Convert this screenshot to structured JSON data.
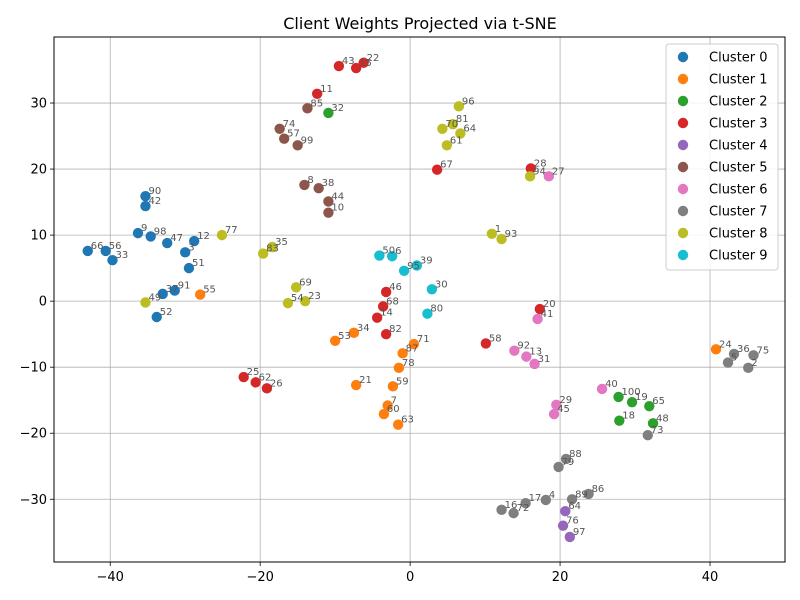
{
  "chart_data": {
    "type": "scatter",
    "title": "Client Weights Projected via t-SNE",
    "xlabel": "",
    "ylabel": "",
    "xlim": [
      -47.5,
      50
    ],
    "ylim": [
      -39.5,
      40
    ],
    "xticks": [
      -40,
      -20,
      0,
      20,
      40
    ],
    "yticks": [
      -30,
      -20,
      -10,
      0,
      10,
      20,
      30
    ],
    "grid": true,
    "legend_position": "top-right",
    "series": [
      {
        "name": "Cluster 0",
        "color": "#1f77b4",
        "points": [
          {
            "label": "66",
            "x": -43.0,
            "y": 7.6
          },
          {
            "label": "56",
            "x": -40.6,
            "y": 7.6
          },
          {
            "label": "33",
            "x": -39.7,
            "y": 6.2
          },
          {
            "label": "90",
            "x": -35.3,
            "y": 15.9
          },
          {
            "label": "42",
            "x": -35.3,
            "y": 14.4
          },
          {
            "label": "9",
            "x": -36.3,
            "y": 10.3
          },
          {
            "label": "98",
            "x": -34.6,
            "y": 9.8
          },
          {
            "label": "47",
            "x": -32.4,
            "y": 8.8
          },
          {
            "label": "12",
            "x": -28.8,
            "y": 9.1
          },
          {
            "label": "3",
            "x": -30.0,
            "y": 7.4
          },
          {
            "label": "51",
            "x": -29.5,
            "y": 5.0
          },
          {
            "label": "37",
            "x": -33.0,
            "y": 1.1
          },
          {
            "label": "91",
            "x": -31.4,
            "y": 1.6
          },
          {
            "label": "52",
            "x": -33.8,
            "y": -2.4
          }
        ]
      },
      {
        "name": "Cluster 1",
        "color": "#ff7f0e",
        "points": [
          {
            "label": "55",
            "x": -28.0,
            "y": 1.0
          },
          {
            "label": "53",
            "x": -10.0,
            "y": -6.0
          },
          {
            "label": "34",
            "x": -7.5,
            "y": -4.8
          },
          {
            "label": "21",
            "x": -7.2,
            "y": -12.7
          },
          {
            "label": "87",
            "x": -1.0,
            "y": -7.9
          },
          {
            "label": "71",
            "x": 0.5,
            "y": -6.5
          },
          {
            "label": "78",
            "x": -1.5,
            "y": -10.1
          },
          {
            "label": "59",
            "x": -2.3,
            "y": -12.9
          },
          {
            "label": "7",
            "x": -3.0,
            "y": -15.8
          },
          {
            "label": "60",
            "x": -3.5,
            "y": -17.1
          },
          {
            "label": "63",
            "x": -1.6,
            "y": -18.7
          },
          {
            "label": "24",
            "x": 40.8,
            "y": -7.3
          }
        ]
      },
      {
        "name": "Cluster 2",
        "color": "#2ca02c",
        "points": [
          {
            "label": "32",
            "x": -10.9,
            "y": 28.5
          },
          {
            "label": "100",
            "x": 27.8,
            "y": -14.5
          },
          {
            "label": "19",
            "x": 29.6,
            "y": -15.3
          },
          {
            "label": "65",
            "x": 31.9,
            "y": -15.9
          },
          {
            "label": "18",
            "x": 27.9,
            "y": -18.1
          },
          {
            "label": "48",
            "x": 32.4,
            "y": -18.5
          }
        ]
      },
      {
        "name": "Cluster 3",
        "color": "#d62728",
        "points": [
          {
            "label": "43",
            "x": -9.5,
            "y": 35.6
          },
          {
            "label": "15",
            "x": -7.2,
            "y": 35.3
          },
          {
            "label": "22",
            "x": -6.2,
            "y": 36.1
          },
          {
            "label": "11",
            "x": -12.4,
            "y": 31.4
          },
          {
            "label": "67",
            "x": 3.6,
            "y": 19.9
          },
          {
            "label": "28",
            "x": 16.1,
            "y": 20.1
          },
          {
            "label": "46",
            "x": -3.2,
            "y": 1.4
          },
          {
            "label": "68",
            "x": -3.6,
            "y": -0.8
          },
          {
            "label": "14",
            "x": -4.4,
            "y": -2.5
          },
          {
            "label": "82",
            "x": -3.2,
            "y": -5.0
          },
          {
            "label": "58",
            "x": 10.1,
            "y": -6.4
          },
          {
            "label": "20",
            "x": 17.3,
            "y": -1.2
          },
          {
            "label": "25",
            "x": -22.2,
            "y": -11.5
          },
          {
            "label": "62",
            "x": -20.6,
            "y": -12.3
          },
          {
            "label": "26",
            "x": -19.1,
            "y": -13.2
          }
        ]
      },
      {
        "name": "Cluster 4",
        "color": "#9467bd",
        "points": [
          {
            "label": "64",
            "x": 20.7,
            "y": -31.8
          },
          {
            "label": "76",
            "x": 20.4,
            "y": -34.0
          },
          {
            "label": "97",
            "x": 21.3,
            "y": -35.7
          }
        ]
      },
      {
        "name": "Cluster 5",
        "color": "#8c564b",
        "points": [
          {
            "label": "85",
            "x": -13.7,
            "y": 29.2
          },
          {
            "label": "74",
            "x": -17.4,
            "y": 26.1
          },
          {
            "label": "57",
            "x": -16.8,
            "y": 24.6
          },
          {
            "label": "99",
            "x": -15.0,
            "y": 23.6
          },
          {
            "label": "8",
            "x": -14.1,
            "y": 17.6
          },
          {
            "label": "38",
            "x": -12.2,
            "y": 17.1
          },
          {
            "label": "44",
            "x": -10.9,
            "y": 15.1
          },
          {
            "label": "10",
            "x": -10.9,
            "y": 13.4
          }
        ]
      },
      {
        "name": "Cluster 6",
        "color": "#e377c2",
        "points": [
          {
            "label": "27",
            "x": 18.5,
            "y": 18.9
          },
          {
            "label": "41",
            "x": 17.0,
            "y": -2.7
          },
          {
            "label": "92",
            "x": 13.9,
            "y": -7.5
          },
          {
            "label": "13",
            "x": 15.5,
            "y": -8.4
          },
          {
            "label": "31",
            "x": 16.6,
            "y": -9.5
          },
          {
            "label": "40",
            "x": 25.6,
            "y": -13.3
          },
          {
            "label": "29",
            "x": 19.5,
            "y": -15.7
          },
          {
            "label": "45",
            "x": 19.2,
            "y": -17.1
          }
        ]
      },
      {
        "name": "Cluster 7",
        "color": "#7f7f7f",
        "points": [
          {
            "label": "36",
            "x": 43.2,
            "y": -8.0
          },
          {
            "label": "75",
            "x": 45.8,
            "y": -8.2
          },
          {
            "label": "5",
            "x": 42.4,
            "y": -9.3
          },
          {
            "label": "2",
            "x": 45.1,
            "y": -10.1
          },
          {
            "label": "73",
            "x": 31.7,
            "y": -20.3
          },
          {
            "label": "88",
            "x": 20.8,
            "y": -23.9
          },
          {
            "label": "79",
            "x": 19.8,
            "y": -25.1
          },
          {
            "label": "86",
            "x": 23.8,
            "y": -29.2
          },
          {
            "label": "89",
            "x": 21.6,
            "y": -30.0
          },
          {
            "label": "4",
            "x": 18.1,
            "y": -30.1
          },
          {
            "label": "17",
            "x": 15.4,
            "y": -30.6
          },
          {
            "label": "16",
            "x": 12.2,
            "y": -31.6
          },
          {
            "label": "72",
            "x": 13.8,
            "y": -32.1
          }
        ]
      },
      {
        "name": "Cluster 8",
        "color": "#bcbd22",
        "points": [
          {
            "label": "96",
            "x": 6.5,
            "y": 29.5
          },
          {
            "label": "70",
            "x": 4.3,
            "y": 26.1
          },
          {
            "label": "81",
            "x": 5.7,
            "y": 26.8
          },
          {
            "label": "64",
            "x": 6.7,
            "y": 25.4
          },
          {
            "label": "61",
            "x": 4.9,
            "y": 23.6
          },
          {
            "label": "94",
            "x": 16.0,
            "y": 18.9
          },
          {
            "label": "77",
            "x": -25.1,
            "y": 10.0
          },
          {
            "label": "83",
            "x": -19.6,
            "y": 7.2
          },
          {
            "label": "35",
            "x": -18.4,
            "y": 8.2
          },
          {
            "label": "1",
            "x": 10.9,
            "y": 10.2
          },
          {
            "label": "93",
            "x": 12.2,
            "y": 9.4
          },
          {
            "label": "69",
            "x": -15.2,
            "y": 2.1
          },
          {
            "label": "54",
            "x": -16.3,
            "y": -0.3
          },
          {
            "label": "23",
            "x": -14.0,
            "y": 0.0
          },
          {
            "label": "49",
            "x": -35.3,
            "y": -0.2
          }
        ]
      },
      {
        "name": "Cluster 9",
        "color": "#17becf",
        "points": [
          {
            "label": "50",
            "x": -4.1,
            "y": 6.9
          },
          {
            "label": "6",
            "x": -2.4,
            "y": 6.8
          },
          {
            "label": "95",
            "x": -0.8,
            "y": 4.6
          },
          {
            "label": "39",
            "x": 0.9,
            "y": 5.4
          },
          {
            "label": "30",
            "x": 2.9,
            "y": 1.8
          },
          {
            "label": "80",
            "x": 2.3,
            "y": -1.9
          }
        ]
      }
    ]
  }
}
